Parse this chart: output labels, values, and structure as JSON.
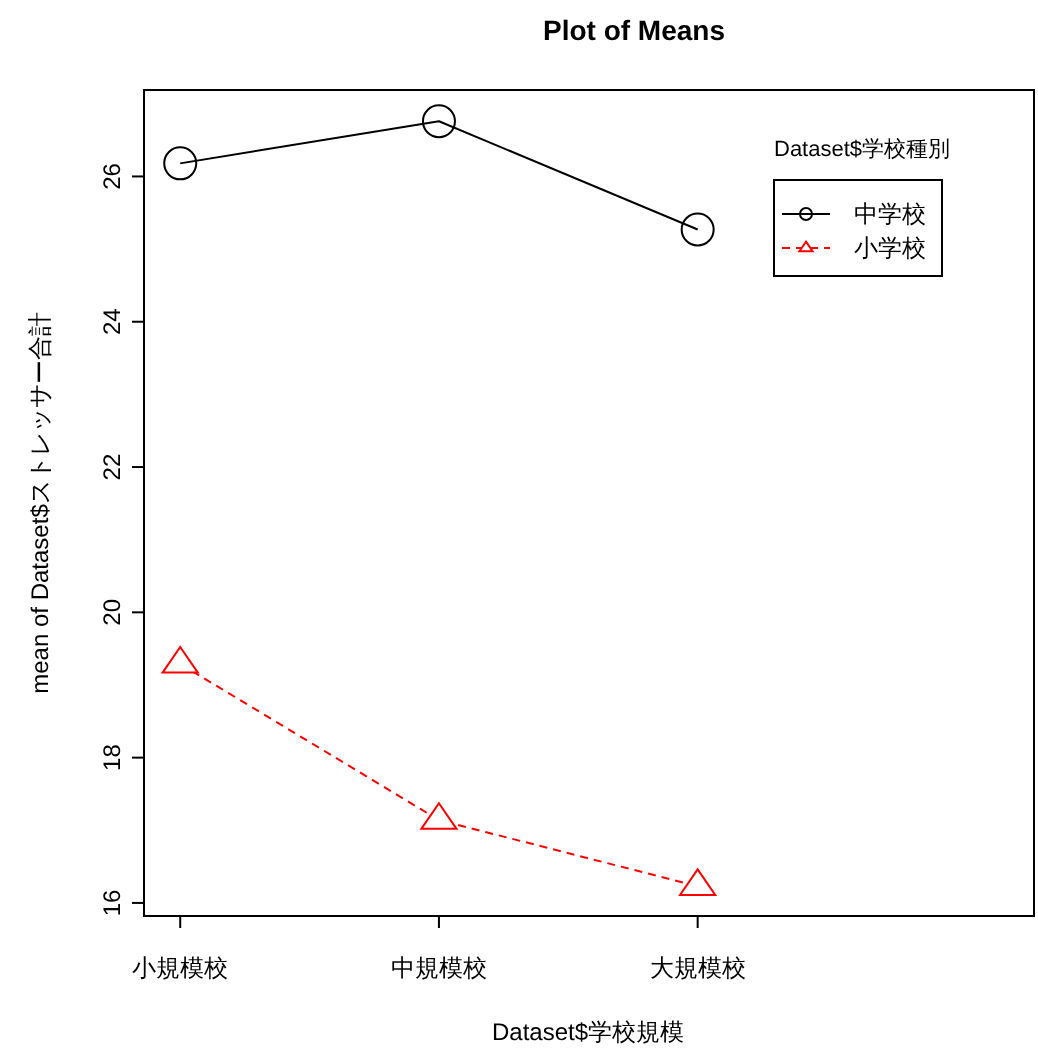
{
  "chart_data": {
    "type": "line",
    "title": "Plot of Means",
    "xlabel": "Dataset$学校規模",
    "ylabel": "mean of Dataset$ストレッサー合計",
    "legend_title": "Dataset$学校種別",
    "categories": [
      "小規模校",
      "中規模校",
      "大規模校"
    ],
    "series": [
      {
        "name": "中学校",
        "color": "#000000",
        "values": [
          26.18,
          26.76,
          25.27
        ],
        "marker": "circle",
        "line_style": "solid"
      },
      {
        "name": "小学校",
        "color": "#ff0000",
        "values": [
          19.29,
          17.14,
          16.23
        ],
        "marker": "triangle",
        "line_style": "dashed"
      }
    ],
    "ylim": [
      15.82,
      27.19
    ],
    "yticks": [
      16,
      18,
      20,
      22,
      24,
      26
    ],
    "grid": false,
    "legend": "top right"
  }
}
